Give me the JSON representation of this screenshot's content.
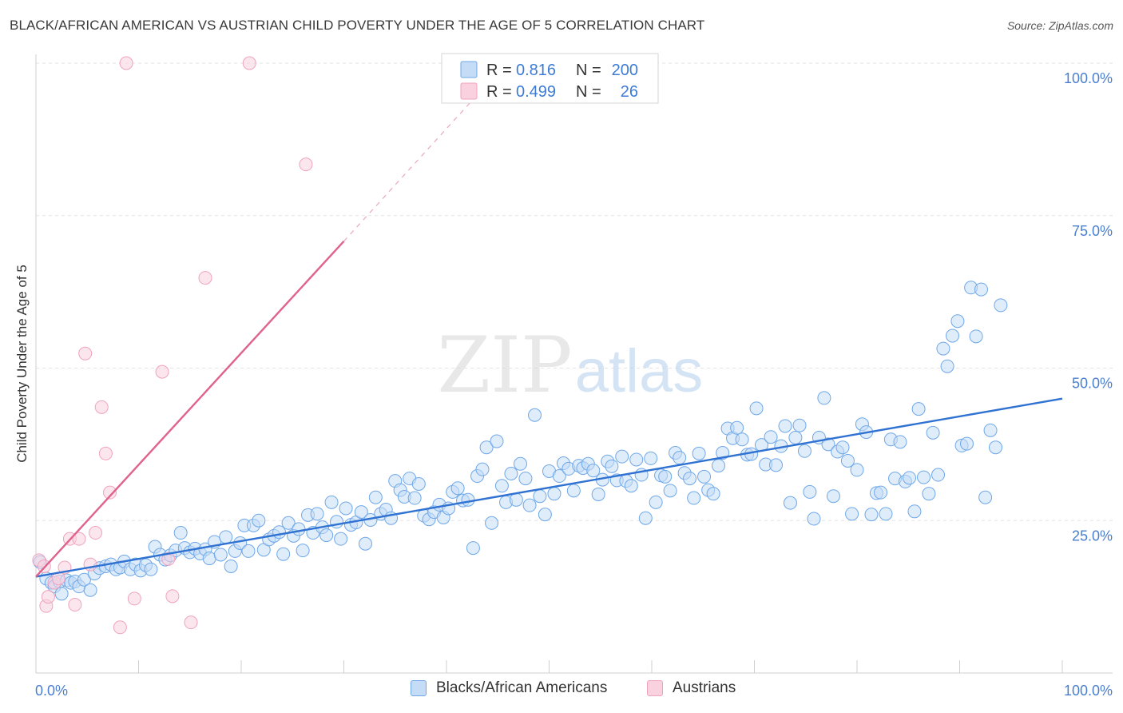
{
  "header": {
    "title": "BLACK/AFRICAN AMERICAN VS AUSTRIAN CHILD POVERTY UNDER THE AGE OF 5 CORRELATION CHART",
    "source": "Source: ZipAtlas.com"
  },
  "watermark": {
    "zip": "ZIP",
    "atlas": "atlas"
  },
  "chart_data": {
    "type": "scatter",
    "ylabel": "Child Poverty Under the Age of 5",
    "xlabel": "",
    "xlim": [
      0,
      100
    ],
    "ylim": [
      0,
      100
    ],
    "x_tick_labels": {
      "left": "0.0%",
      "right": "100.0%"
    },
    "y_ticks": [
      {
        "value": 25,
        "label": "25.0%"
      },
      {
        "value": 50,
        "label": "50.0%"
      },
      {
        "value": 75,
        "label": "75.0%"
      },
      {
        "value": 100,
        "label": "100.0%"
      }
    ],
    "grid": true,
    "legend_position": "top-center",
    "stats_legend": [
      {
        "r_label": "R =",
        "r_value": "0.816",
        "n_label": "N =",
        "n_value": "200",
        "color": "#6fa8e8"
      },
      {
        "r_label": "R =",
        "r_value": "0.499",
        "n_label": "N =",
        "n_value": "26",
        "color": "#f0a3bd"
      }
    ],
    "series": [
      {
        "name": "Blacks/African Americans",
        "color": "#6fa8e8",
        "line_color": "#2f72d2",
        "trend": {
          "x": [
            0,
            100
          ],
          "y": [
            15.8,
            45.0
          ]
        },
        "points": [
          [
            0.4,
            18.2
          ],
          [
            1.0,
            15.5
          ],
          [
            1.5,
            14.8
          ],
          [
            1.8,
            14.2
          ],
          [
            2.3,
            15.0
          ],
          [
            2.5,
            13.0
          ],
          [
            3.0,
            15.2
          ],
          [
            3.4,
            14.8
          ],
          [
            3.8,
            15.0
          ],
          [
            4.2,
            14.2
          ],
          [
            4.7,
            15.3
          ],
          [
            5.3,
            13.6
          ],
          [
            5.7,
            16.3
          ],
          [
            6.2,
            17.2
          ],
          [
            6.8,
            17.5
          ],
          [
            7.3,
            17.8
          ],
          [
            7.8,
            17.0
          ],
          [
            8.2,
            17.3
          ],
          [
            8.6,
            18.3
          ],
          [
            9.2,
            17.0
          ],
          [
            9.7,
            17.8
          ],
          [
            10.2,
            16.8
          ],
          [
            10.7,
            17.7
          ],
          [
            11.2,
            17.0
          ],
          [
            11.6,
            20.7
          ],
          [
            12.1,
            19.4
          ],
          [
            12.6,
            18.6
          ],
          [
            13.1,
            19.3
          ],
          [
            13.6,
            20.1
          ],
          [
            14.1,
            23.0
          ],
          [
            14.5,
            20.5
          ],
          [
            15.0,
            19.8
          ],
          [
            15.5,
            20.4
          ],
          [
            16.0,
            19.6
          ],
          [
            16.5,
            20.3
          ],
          [
            16.9,
            18.8
          ],
          [
            17.4,
            21.5
          ],
          [
            18.0,
            19.4
          ],
          [
            18.5,
            22.3
          ],
          [
            19.0,
            17.5
          ],
          [
            19.4,
            20.0
          ],
          [
            19.9,
            21.3
          ],
          [
            20.3,
            24.2
          ],
          [
            20.7,
            20.0
          ],
          [
            21.2,
            24.2
          ],
          [
            21.7,
            25.0
          ],
          [
            22.2,
            20.2
          ],
          [
            22.7,
            21.9
          ],
          [
            23.2,
            22.5
          ],
          [
            23.7,
            23.1
          ],
          [
            24.1,
            19.5
          ],
          [
            24.6,
            24.6
          ],
          [
            25.1,
            22.5
          ],
          [
            25.6,
            23.6
          ],
          [
            26.0,
            20.1
          ],
          [
            26.5,
            25.9
          ],
          [
            27.0,
            23.0
          ],
          [
            27.4,
            26.1
          ],
          [
            27.9,
            23.9
          ],
          [
            28.3,
            22.6
          ],
          [
            28.8,
            28.0
          ],
          [
            29.3,
            24.8
          ],
          [
            29.7,
            22.0
          ],
          [
            30.2,
            27.0
          ],
          [
            30.7,
            24.3
          ],
          [
            31.2,
            24.7
          ],
          [
            31.7,
            26.4
          ],
          [
            32.1,
            21.2
          ],
          [
            32.6,
            25.1
          ],
          [
            33.1,
            28.8
          ],
          [
            33.6,
            26.1
          ],
          [
            34.1,
            26.8
          ],
          [
            34.6,
            25.4
          ],
          [
            35.0,
            31.5
          ],
          [
            35.5,
            30.0
          ],
          [
            35.9,
            28.9
          ],
          [
            36.4,
            31.9
          ],
          [
            36.9,
            28.7
          ],
          [
            37.3,
            31.0
          ],
          [
            37.8,
            25.8
          ],
          [
            38.3,
            25.2
          ],
          [
            38.8,
            26.4
          ],
          [
            39.3,
            27.6
          ],
          [
            39.7,
            25.5
          ],
          [
            40.2,
            27.0
          ],
          [
            40.6,
            29.7
          ],
          [
            41.1,
            30.3
          ],
          [
            41.6,
            28.3
          ],
          [
            42.1,
            28.4
          ],
          [
            42.6,
            20.5
          ],
          [
            43.0,
            32.3
          ],
          [
            43.5,
            33.4
          ],
          [
            43.9,
            37.0
          ],
          [
            44.4,
            24.6
          ],
          [
            44.9,
            38.0
          ],
          [
            45.4,
            30.7
          ],
          [
            45.8,
            28.0
          ],
          [
            46.3,
            32.7
          ],
          [
            46.8,
            28.4
          ],
          [
            47.2,
            34.3
          ],
          [
            47.7,
            31.9
          ],
          [
            48.1,
            27.5
          ],
          [
            48.6,
            42.3
          ],
          [
            49.1,
            29.0
          ],
          [
            49.6,
            26.0
          ],
          [
            50.0,
            33.1
          ],
          [
            50.5,
            29.4
          ],
          [
            51.0,
            32.3
          ],
          [
            51.4,
            34.4
          ],
          [
            51.9,
            33.5
          ],
          [
            52.4,
            29.9
          ],
          [
            52.9,
            34.0
          ],
          [
            53.3,
            33.6
          ],
          [
            53.8,
            34.3
          ],
          [
            54.3,
            33.2
          ],
          [
            54.8,
            29.3
          ],
          [
            55.2,
            31.7
          ],
          [
            55.7,
            34.7
          ],
          [
            56.1,
            33.9
          ],
          [
            56.6,
            31.6
          ],
          [
            57.1,
            35.5
          ],
          [
            57.5,
            31.5
          ],
          [
            58.0,
            30.7
          ],
          [
            58.5,
            35.0
          ],
          [
            59.0,
            32.5
          ],
          [
            59.4,
            25.4
          ],
          [
            59.9,
            35.2
          ],
          [
            60.4,
            28.0
          ],
          [
            60.9,
            32.4
          ],
          [
            61.3,
            32.2
          ],
          [
            61.8,
            29.9
          ],
          [
            62.3,
            36.1
          ],
          [
            62.7,
            35.3
          ],
          [
            63.2,
            32.8
          ],
          [
            63.7,
            31.9
          ],
          [
            64.1,
            28.7
          ],
          [
            64.6,
            36.0
          ],
          [
            65.1,
            32.2
          ],
          [
            65.5,
            30.0
          ],
          [
            66.0,
            29.4
          ],
          [
            66.5,
            34.0
          ],
          [
            66.9,
            36.1
          ],
          [
            67.4,
            40.1
          ],
          [
            67.9,
            38.5
          ],
          [
            68.3,
            40.2
          ],
          [
            68.8,
            38.3
          ],
          [
            69.3,
            35.8
          ],
          [
            69.7,
            35.9
          ],
          [
            70.2,
            43.4
          ],
          [
            70.7,
            37.4
          ],
          [
            71.1,
            34.2
          ],
          [
            71.6,
            38.7
          ],
          [
            72.1,
            34.1
          ],
          [
            72.6,
            37.2
          ],
          [
            73.0,
            40.5
          ],
          [
            73.5,
            27.9
          ],
          [
            74.0,
            38.6
          ],
          [
            74.4,
            40.6
          ],
          [
            74.9,
            36.4
          ],
          [
            75.4,
            29.7
          ],
          [
            75.8,
            25.3
          ],
          [
            76.3,
            38.6
          ],
          [
            76.8,
            45.1
          ],
          [
            77.2,
            37.5
          ],
          [
            77.7,
            29.0
          ],
          [
            78.1,
            36.3
          ],
          [
            78.6,
            37.0
          ],
          [
            79.1,
            34.8
          ],
          [
            79.5,
            26.1
          ],
          [
            80.0,
            33.3
          ],
          [
            80.5,
            40.8
          ],
          [
            80.9,
            39.5
          ],
          [
            81.4,
            26.0
          ],
          [
            81.9,
            29.5
          ],
          [
            82.3,
            29.6
          ],
          [
            82.8,
            26.1
          ],
          [
            83.3,
            38.3
          ],
          [
            83.7,
            31.9
          ],
          [
            84.2,
            37.9
          ],
          [
            84.7,
            31.4
          ],
          [
            85.1,
            32.0
          ],
          [
            85.6,
            26.5
          ],
          [
            86.0,
            43.3
          ],
          [
            86.5,
            32.1
          ],
          [
            87.0,
            29.4
          ],
          [
            87.4,
            39.4
          ],
          [
            87.9,
            32.5
          ],
          [
            88.4,
            53.2
          ],
          [
            88.8,
            50.3
          ],
          [
            89.3,
            55.3
          ],
          [
            89.8,
            57.7
          ],
          [
            90.2,
            37.3
          ],
          [
            90.7,
            37.6
          ],
          [
            91.1,
            63.2
          ],
          [
            91.6,
            55.2
          ],
          [
            92.1,
            62.9
          ],
          [
            92.5,
            28.8
          ],
          [
            93.0,
            39.8
          ],
          [
            93.5,
            37.0
          ],
          [
            94.0,
            60.3
          ]
        ]
      },
      {
        "name": "Austrians",
        "color": "#f0a3bd",
        "line_color": "#e0638d",
        "trend": {
          "x": [
            0,
            30
          ],
          "y": [
            15.8,
            70.8
          ]
        },
        "trend_dashed": {
          "x": [
            30,
            43
          ],
          "y": [
            70.8,
            94.8
          ]
        },
        "points": [
          [
            0.3,
            18.5
          ],
          [
            0.8,
            17.5
          ],
          [
            1.0,
            11.0
          ],
          [
            1.2,
            12.5
          ],
          [
            1.8,
            14.8
          ],
          [
            2.2,
            15.5
          ],
          [
            2.8,
            17.3
          ],
          [
            3.3,
            22.0
          ],
          [
            3.8,
            11.2
          ],
          [
            4.2,
            22.0
          ],
          [
            4.8,
            52.4
          ],
          [
            5.3,
            17.8
          ],
          [
            5.8,
            23.0
          ],
          [
            6.4,
            43.6
          ],
          [
            6.8,
            36.0
          ],
          [
            7.2,
            29.6
          ],
          [
            8.2,
            7.5
          ],
          [
            8.8,
            100.0
          ],
          [
            9.6,
            12.2
          ],
          [
            12.3,
            49.4
          ],
          [
            12.9,
            18.7
          ],
          [
            13.3,
            12.6
          ],
          [
            15.1,
            8.3
          ],
          [
            16.5,
            64.8
          ],
          [
            20.8,
            100.0
          ],
          [
            26.3,
            83.4
          ]
        ]
      }
    ]
  }
}
